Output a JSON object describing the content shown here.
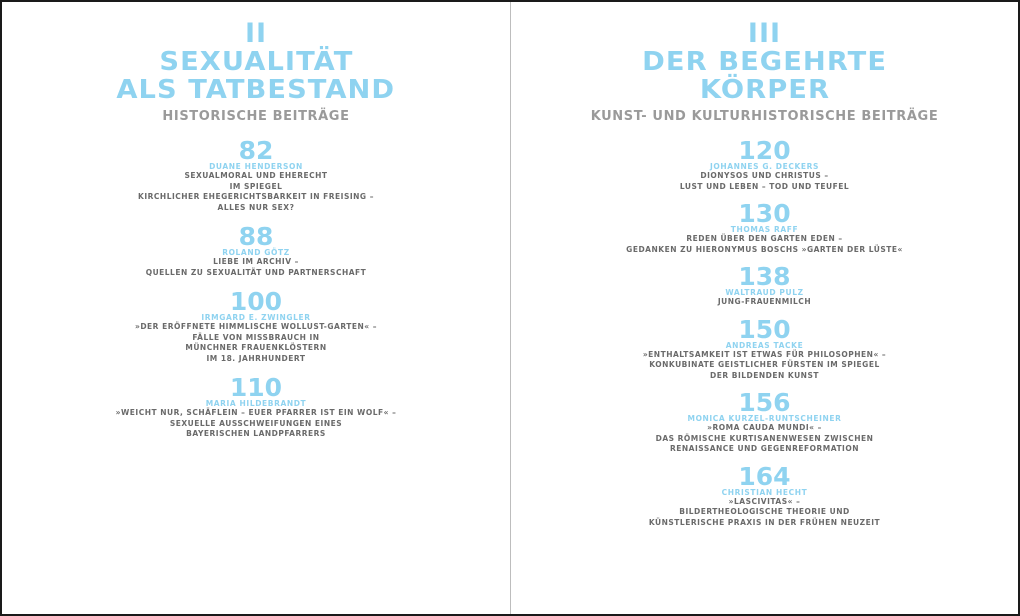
{
  "left": {
    "roman": "II",
    "title_lines": [
      "SEXUALITÄT",
      "ALS TATBESTAND"
    ],
    "subtitle": "HISTORISCHE BEITRÄGE",
    "entries": [
      {
        "page": "82",
        "author": "DUANE HENDERSON",
        "lines": [
          "SEXUALMORAL UND EHERECHT",
          "IM SPIEGEL",
          "KIRCHLICHER EHEGERICHTSBARKEIT IN FREISING –",
          "ALLES NUR SEX?"
        ]
      },
      {
        "page": "88",
        "author": "ROLAND GÖTZ",
        "lines": [
          "LIEBE IM ARCHIV –",
          "QUELLEN ZU SEXUALITÄT UND PARTNERSCHAFT"
        ]
      },
      {
        "page": "100",
        "author": "IRMGARD E. ZWINGLER",
        "lines": [
          "»DER ERÖFFNETE HIMMLISCHE WOLLUST-GARTEN« –",
          "FÄLLE VON MISSBRAUCH IN",
          "MÜNCHNER FRAUENKLÖSTERN",
          "IM 18. JAHRHUNDERT"
        ]
      },
      {
        "page": "110",
        "author": "MARIA HILDEBRANDT",
        "lines": [
          "»WEICHT NUR, SCHÄFLEIN – EUER PFARRER IST EIN WOLF« –",
          "SEXUELLE AUSSCHWEIFUNGEN EINES",
          "BAYERISCHEN LANDPFARRERS"
        ]
      }
    ]
  },
  "right": {
    "roman": "III",
    "title_lines": [
      "DER BEGEHRTE",
      "KÖRPER"
    ],
    "subtitle": "KUNST- UND KULTURHISTORISCHE BEITRÄGE",
    "entries": [
      {
        "page": "120",
        "author": "JOHANNES G. DECKERS",
        "lines": [
          "DIONYSOS UND CHRISTUS –",
          "LUST UND LEBEN – TOD UND TEUFEL"
        ]
      },
      {
        "page": "130",
        "author": "THOMAS RAFF",
        "lines": [
          "REDEN ÜBER DEN GARTEN EDEN –",
          "GEDANKEN ZU HIERONYMUS BOSCHS »GARTEN DER LÜSTE«"
        ]
      },
      {
        "page": "138",
        "author": "WALTRAUD PULZ",
        "lines": [
          "JUNG-FRAUENMILCH"
        ]
      },
      {
        "page": "150",
        "author": "ANDREAS TACKE",
        "lines": [
          "»ENTHALTSAMKEIT IST ETWAS FÜR PHILOSOPHEN« –",
          "KONKUBINATE GEISTLICHER FÜRSTEN IM SPIEGEL",
          "DER BILDENDEN KUNST"
        ]
      },
      {
        "page": "156",
        "author": "MONICA KURZEL-RUNTSCHEINER",
        "lines": [
          "»ROMA CAUDA MUNDI« –",
          "DAS RÖMISCHE KURTISANENWESEN ZWISCHEN",
          "RENAISSANCE UND GEGENREFORMATION"
        ]
      },
      {
        "page": "164",
        "author": "CHRISTIAN HECHT",
        "lines": [
          "»LASCIVITAS« –",
          "BILDERTHEOLOGISCHE THEORIE UND",
          "KÜNSTLERISCHE PRAXIS IN DER FRÜHEN NEUZEIT"
        ]
      }
    ]
  }
}
